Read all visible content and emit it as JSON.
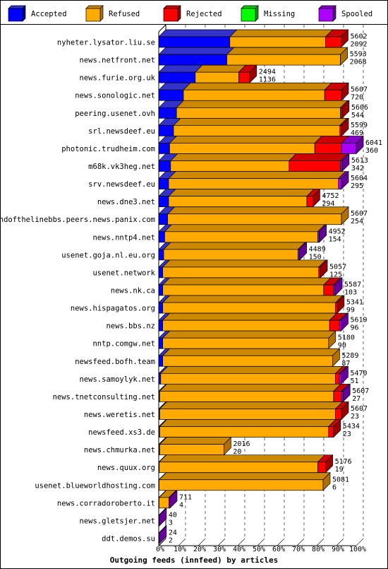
{
  "chart_data": {
    "type": "bar",
    "orientation": "horizontal",
    "stacked": true,
    "title": "Outgoing feeds (innfeed) by articles",
    "xlim": [
      0,
      100
    ],
    "x_unit": "%",
    "x_ticks": [
      "0%",
      "10%",
      "20%",
      "30%",
      "40%",
      "50%",
      "60%",
      "70%",
      "80%",
      "90%",
      "100%"
    ],
    "grid": true,
    "legend_position": "top",
    "series": [
      {
        "name": "Accepted",
        "color": "#0000ff",
        "side": "#000099",
        "top": "#3333cc"
      },
      {
        "name": "Refused",
        "color": "#ffaa00",
        "side": "#b07000",
        "top": "#cc8800"
      },
      {
        "name": "Rejected",
        "color": "#ff0000",
        "side": "#990000",
        "top": "#cc0000"
      },
      {
        "name": "Missing",
        "color": "#00ff00",
        "side": "#009900",
        "top": "#00cc00"
      },
      {
        "name": "Spooled",
        "color": "#aa00ff",
        "side": "#660099",
        "top": "#8800cc"
      }
    ],
    "rows": [
      {
        "host": "nyheter.lysator.liu.se",
        "total": "5602",
        "accepted": "2092",
        "pct": [
          36,
          48.5,
          7.8,
          0,
          0
        ]
      },
      {
        "host": "news.netfront.net",
        "total": "5593",
        "accepted": "2068",
        "pct": [
          34.5,
          57.5,
          0,
          0,
          0
        ]
      },
      {
        "host": "news.furie.org.uk",
        "total": "2494",
        "accepted": "1136",
        "pct": [
          18.5,
          22,
          5.5,
          0,
          0
        ]
      },
      {
        "host": "news.sonologic.net",
        "total": "5607",
        "accepted": "720",
        "pct": [
          12.5,
          71.5,
          8.5,
          0,
          0
        ]
      },
      {
        "host": "peering.usenet.ovh",
        "total": "5606",
        "accepted": "544",
        "pct": [
          9,
          83,
          0.8,
          0,
          0
        ]
      },
      {
        "host": "srl.newsdeef.eu",
        "total": "5599",
        "accepted": "469",
        "pct": [
          7.5,
          84.2,
          0.8,
          0,
          0
        ]
      },
      {
        "host": "photonic.trudheim.com",
        "total": "6041",
        "accepted": "360",
        "pct": [
          5.5,
          73.5,
          13.5,
          0,
          7.5
        ]
      },
      {
        "host": "m68k.vk3heg.net",
        "total": "5613",
        "accepted": "342",
        "pct": [
          6,
          60,
          26,
          0,
          0.8
        ]
      },
      {
        "host": "srv.newsdeef.eu",
        "total": "5604",
        "accepted": "295",
        "pct": [
          5,
          86,
          0,
          0,
          1.5
        ]
      },
      {
        "host": "news.dne3.net",
        "total": "4752",
        "accepted": "294",
        "pct": [
          5,
          70,
          3,
          0,
          0
        ]
      },
      {
        "host": "endofthelinebbs.peers.news.panix.com",
        "total": "5607",
        "accepted": "254",
        "pct": [
          4.5,
          88,
          0,
          0,
          0
        ]
      },
      {
        "host": "news.nntp4.net",
        "total": "4952",
        "accepted": "154",
        "pct": [
          3,
          77.5,
          0,
          0,
          0.8
        ]
      },
      {
        "host": "usenet.goja.nl.eu.org",
        "total": "4489",
        "accepted": "150",
        "pct": [
          2.5,
          68,
          0,
          0,
          0.8
        ]
      },
      {
        "host": "usenet.network",
        "total": "5057",
        "accepted": "125",
        "pct": [
          2,
          79,
          0.8,
          0,
          0
        ]
      },
      {
        "host": "news.nk.ca",
        "total": "5587",
        "accepted": "103",
        "pct": [
          2,
          81.5,
          5,
          0,
          0.8
        ]
      },
      {
        "host": "news.hispagatos.org",
        "total": "5341",
        "accepted": "99",
        "pct": [
          2,
          87.5,
          0.8,
          0,
          0
        ]
      },
      {
        "host": "news.bbs.nz",
        "total": "5619",
        "accepted": "96",
        "pct": [
          2,
          84.5,
          5,
          0,
          0.8
        ]
      },
      {
        "host": "nntp.comgw.net",
        "total": "5180",
        "accepted": "90",
        "pct": [
          2,
          84,
          0,
          0,
          0
        ]
      },
      {
        "host": "newsfeed.bofh.team",
        "total": "5289",
        "accepted": "87",
        "pct": [
          2,
          86,
          0,
          0,
          0
        ]
      },
      {
        "host": "news.samoylyk.net",
        "total": "5470",
        "accepted": "51",
        "pct": [
          1,
          88.5,
          2,
          0,
          0.8
        ]
      },
      {
        "host": "news.tnetconsulting.net",
        "total": "5607",
        "accepted": "27",
        "pct": [
          0.5,
          88,
          4,
          0,
          0.8
        ]
      },
      {
        "host": "news.weretis.net",
        "total": "5607",
        "accepted": "23",
        "pct": [
          0.5,
          89,
          3,
          0,
          0
        ]
      },
      {
        "host": "newsfeed.xs3.de",
        "total": "5434",
        "accepted": "23",
        "pct": [
          0.5,
          85.5,
          2.5,
          0,
          0
        ]
      },
      {
        "host": "news.chmurka.net",
        "total": "2016",
        "accepted": "20",
        "pct": [
          0.5,
          32.5,
          0,
          0,
          0
        ]
      },
      {
        "host": "news.quux.org",
        "total": "5176",
        "accepted": "19",
        "pct": [
          0.3,
          80.2,
          4,
          0,
          0
        ]
      },
      {
        "host": "usenet.blueworldhosting.com",
        "total": "5081",
        "accepted": "6",
        "pct": [
          0.2,
          83,
          0,
          0,
          0
        ]
      },
      {
        "host": "news.corradoroberto.it",
        "total": "711",
        "accepted": "4",
        "pct": [
          0.2,
          5,
          0,
          0,
          0.5
        ]
      },
      {
        "host": "news.gletsjer.net",
        "total": "40",
        "accepted": "3",
        "pct": [
          0,
          0,
          0,
          0,
          0.3
        ]
      },
      {
        "host": "ddt.demos.su",
        "total": "24",
        "accepted": "2",
        "pct": [
          0,
          0,
          0,
          0,
          0.3
        ]
      }
    ]
  }
}
